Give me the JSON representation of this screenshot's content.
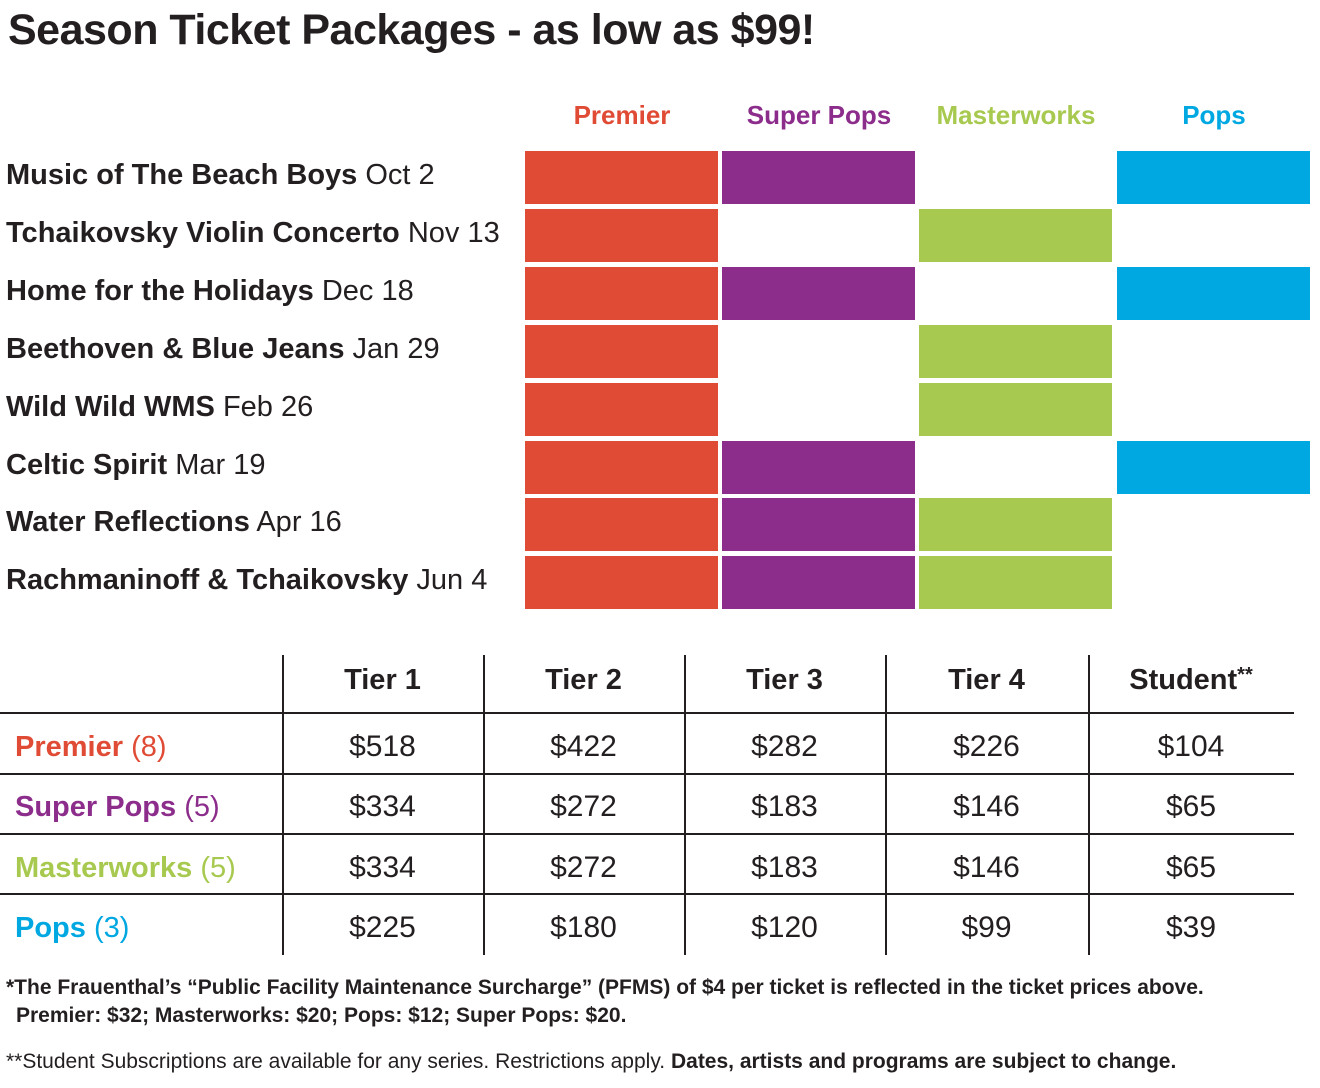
{
  "title": "Season Ticket Packages - as low as $99!",
  "series": [
    {
      "name": "Premier",
      "color": "#e04b35"
    },
    {
      "name": "Super Pops",
      "color": "#8c2d8c"
    },
    {
      "name": "Masterworks",
      "color": "#a8c94f"
    },
    {
      "name": "Pops",
      "color": "#00a8e2"
    }
  ],
  "events": [
    {
      "name": "Music of The Beach Boys",
      "date": "Oct 2",
      "series": [
        true,
        true,
        false,
        true
      ]
    },
    {
      "name": "Tchaikovsky Violin Concerto",
      "date": "Nov 13",
      "series": [
        true,
        false,
        true,
        false
      ]
    },
    {
      "name": "Home for the Holidays",
      "date": "Dec 18",
      "series": [
        true,
        true,
        false,
        true
      ]
    },
    {
      "name": "Beethoven & Blue Jeans",
      "date": "Jan 29",
      "series": [
        true,
        false,
        true,
        false
      ]
    },
    {
      "name": "Wild Wild WMS",
      "date": "Feb 26",
      "series": [
        true,
        false,
        true,
        false
      ]
    },
    {
      "name": "Celtic Spirit",
      "date": "Mar 19",
      "series": [
        true,
        true,
        false,
        true
      ]
    },
    {
      "name": "Water Reflections",
      "date": "Apr 16",
      "series": [
        true,
        true,
        true,
        false
      ]
    },
    {
      "name": "Rachmaninoff & Tchaikovsky",
      "date": "Jun 4",
      "series": [
        true,
        true,
        true,
        false
      ]
    }
  ],
  "pricing": {
    "headers": [
      "Tier 1",
      "Tier 2",
      "Tier 3",
      "Tier 4",
      "Student"
    ],
    "student_mark": "**",
    "rows": [
      {
        "package": "Premier",
        "count": "(8)",
        "prices": [
          "$518",
          "$422",
          "$282",
          "$226",
          "$104"
        ]
      },
      {
        "package": "Super Pops",
        "count": "(5)",
        "prices": [
          "$334",
          "$272",
          "$183",
          "$146",
          "$65"
        ]
      },
      {
        "package": "Masterworks",
        "count": "(5)",
        "prices": [
          "$334",
          "$272",
          "$183",
          "$146",
          "$65"
        ]
      },
      {
        "package": "Pops",
        "count": "(3)",
        "prices": [
          "$225",
          "$180",
          "$120",
          "$99",
          "$39"
        ]
      }
    ]
  },
  "footnotes": {
    "surcharge_line1": "*The Frauenthal’s “Public Facility Maintenance Surcharge” (PFMS) of $4 per ticket is reflected in the ticket prices above.",
    "surcharge_line2": "Premier: $32; Masterworks: $20; Pops: $12; Super Pops: $20.",
    "student_note": "**Student Subscriptions are available for any series. Restrictions apply.",
    "student_note_bold": "Dates, artists and programs are subject to change."
  }
}
